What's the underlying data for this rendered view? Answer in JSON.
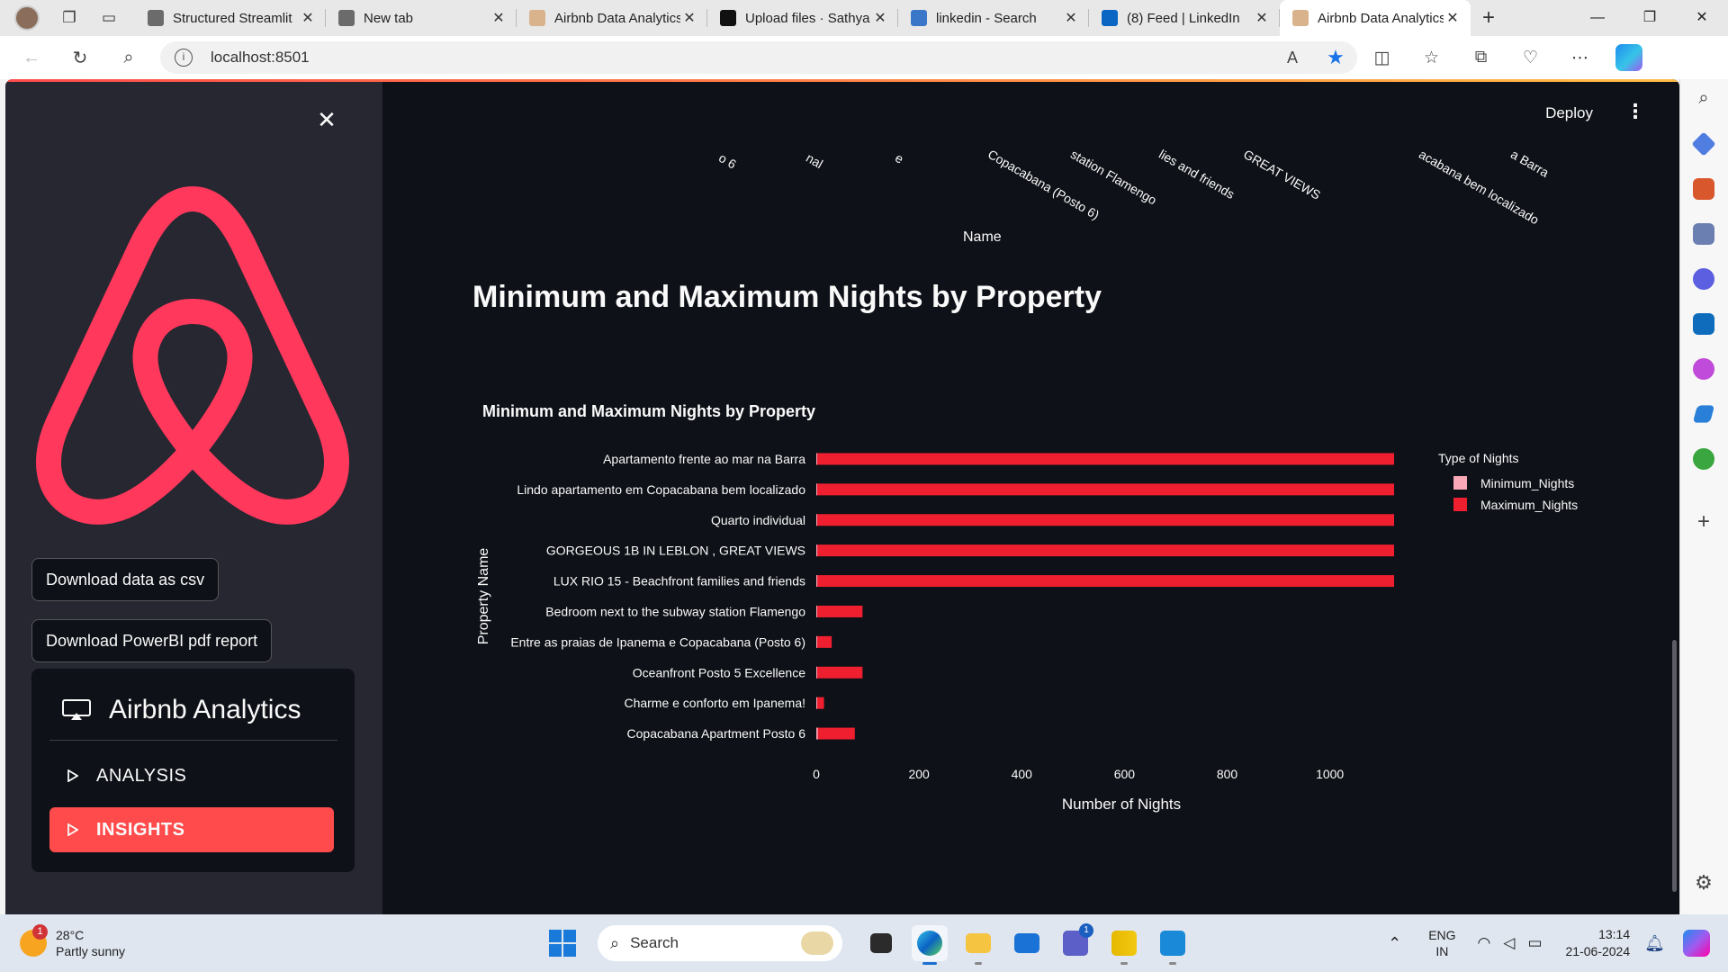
{
  "browser": {
    "tabs": [
      {
        "title": "Structured Streamlit",
        "favicon_color": "#6b6b6b",
        "active": false
      },
      {
        "title": "New tab",
        "favicon_color": "#6b6b6b",
        "active": false
      },
      {
        "title": "Airbnb Data Analytics",
        "favicon_color": "#d9b38c",
        "active": false
      },
      {
        "title": "Upload files · Sathya",
        "favicon_color": "#111111",
        "active": false
      },
      {
        "title": "linkedin - Search",
        "favicon_color": "#3b77c9",
        "active": false
      },
      {
        "title": "(8) Feed | LinkedIn",
        "favicon_color": "#0a66c2",
        "active": false
      },
      {
        "title": "Airbnb Data Analytics",
        "favicon_color": "#d9b38c",
        "active": true
      }
    ],
    "url": "localhost:8501"
  },
  "sidebar": {
    "close_icon": "close-icon",
    "logo_color": "#ff385c",
    "download_csv_label": "Download data as csv",
    "download_pdf_label": "Download PowerBI pdf report",
    "menu": {
      "title": "Airbnb Analytics",
      "items": [
        {
          "label": "ANALYSIS",
          "active": false
        },
        {
          "label": "INSIGHTS",
          "active": true
        }
      ]
    }
  },
  "main": {
    "deploy_label": "Deploy",
    "previous_chart": {
      "xlabel": "Name",
      "clipped_tick_labels": [
        "o 6",
        "nal",
        "e",
        "Copacabana (Posto 6)",
        "station Flamengo",
        "lies and friends",
        "GREAT VIEWS",
        "acabana bem localizado",
        "a Barra"
      ]
    },
    "section_header": "Minimum and Maximum Nights by Property"
  },
  "chart_data": {
    "type": "bar",
    "orientation": "horizontal",
    "title": "Minimum and Maximum Nights by Property",
    "xlabel": "Number of Nights",
    "ylabel": "Property Name",
    "xlim": [
      0,
      1125
    ],
    "xticks": [
      0,
      200,
      400,
      600,
      800,
      1000
    ],
    "categories": [
      "Apartamento frente ao mar na Barra",
      "Lindo apartamento em Copacabana bem localizado",
      "Quarto individual",
      "GORGEOUS 1B IN LEBLON , GREAT VIEWS",
      "LUX RIO 15 - Beachfront families and friends",
      "Bedroom next to the subway station Flamengo",
      "Entre as praias de Ipanema e Copacabana (Posto 6)",
      "Oceanfront Posto 5 Excellence",
      "Charme e conforto em Ipanema!",
      "Copacabana Apartment Posto 6"
    ],
    "series": [
      {
        "name": "Minimum_Nights",
        "color": "#f9a8b8",
        "values": [
          1,
          1,
          1,
          2,
          2,
          1,
          1,
          1,
          1,
          3
        ]
      },
      {
        "name": "Maximum_Nights",
        "color": "#ef1f2f",
        "values": [
          1125,
          1125,
          1125,
          1125,
          1125,
          90,
          30,
          90,
          15,
          75
        ]
      }
    ],
    "legend": {
      "title": "Type of Nights",
      "position": "right"
    },
    "grid": false
  },
  "taskbar": {
    "weather": {
      "badge": "1",
      "temp": "28°C",
      "desc": "Partly sunny"
    },
    "search_placeholder": "Search",
    "teams_badge": "1",
    "lang_line1": "ENG",
    "lang_line2": "IN",
    "time": "13:14",
    "date": "21-06-2024"
  }
}
